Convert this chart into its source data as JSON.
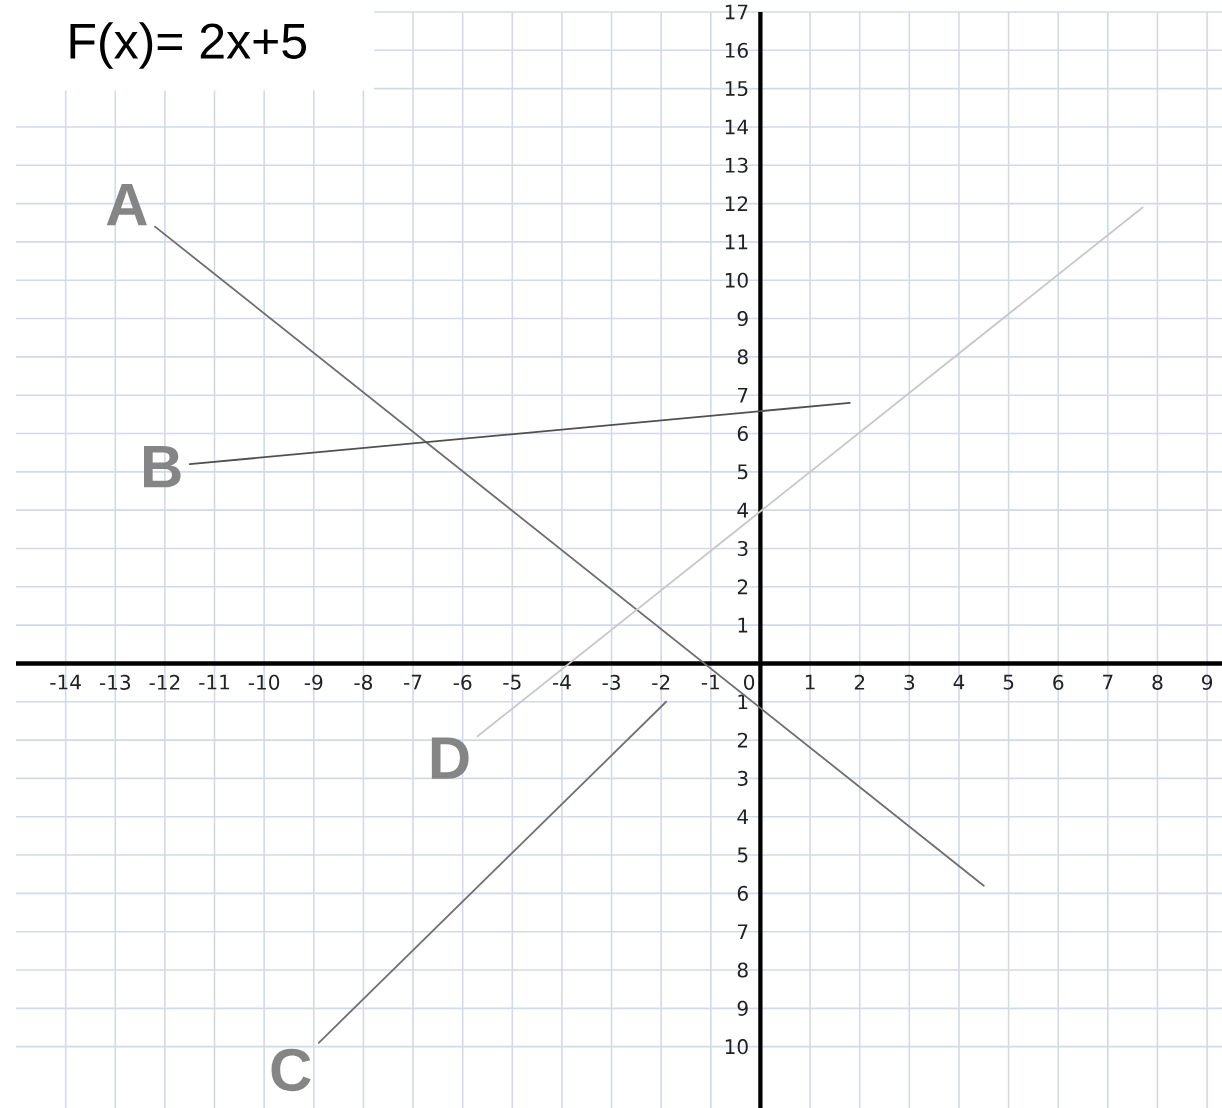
{
  "chart_data": {
    "type": "line",
    "title": "F(x)= 2x+5",
    "series": [
      {
        "name": "A",
        "color": "#6e6e6e",
        "x": [
          -12.2,
          4.5
        ],
        "values": [
          11.4,
          -5.8
        ]
      },
      {
        "name": "B",
        "color": "#505050",
        "x": [
          -11.5,
          1.8
        ],
        "values": [
          5.2,
          6.8
        ]
      },
      {
        "name": "C",
        "color": "#707070",
        "x": [
          -8.9,
          -1.9
        ],
        "values": [
          -9.9,
          -1.0
        ]
      },
      {
        "name": "D",
        "color": "#c8c8c8",
        "x": [
          -5.7,
          7.7
        ],
        "values": [
          -1.9,
          11.9
        ]
      }
    ],
    "xlim": [
      -15,
      9.3
    ],
    "ylim": [
      -11.6,
      17
    ],
    "xticks": [
      -14,
      -13,
      -12,
      -11,
      -10,
      -9,
      -8,
      -7,
      -6,
      -5,
      -4,
      -3,
      -2,
      -1,
      0,
      1,
      2,
      3,
      4,
      5,
      6,
      7,
      8,
      9
    ],
    "yticks": [
      {
        "value": -10,
        "label": "10"
      },
      {
        "value": -9,
        "label": "9"
      },
      {
        "value": -8,
        "label": "8"
      },
      {
        "value": -7,
        "label": "7"
      },
      {
        "value": -6,
        "label": "6"
      },
      {
        "value": -5,
        "label": "5"
      },
      {
        "value": -4,
        "label": "4"
      },
      {
        "value": -3,
        "label": "3"
      },
      {
        "value": -2,
        "label": "2"
      },
      {
        "value": -1,
        "label": "1"
      },
      1,
      2,
      3,
      4,
      5,
      6,
      7,
      8,
      9,
      10,
      11,
      12,
      13,
      14,
      15,
      16,
      17
    ],
    "grid": true,
    "marker": "none",
    "line_style": "solid"
  }
}
